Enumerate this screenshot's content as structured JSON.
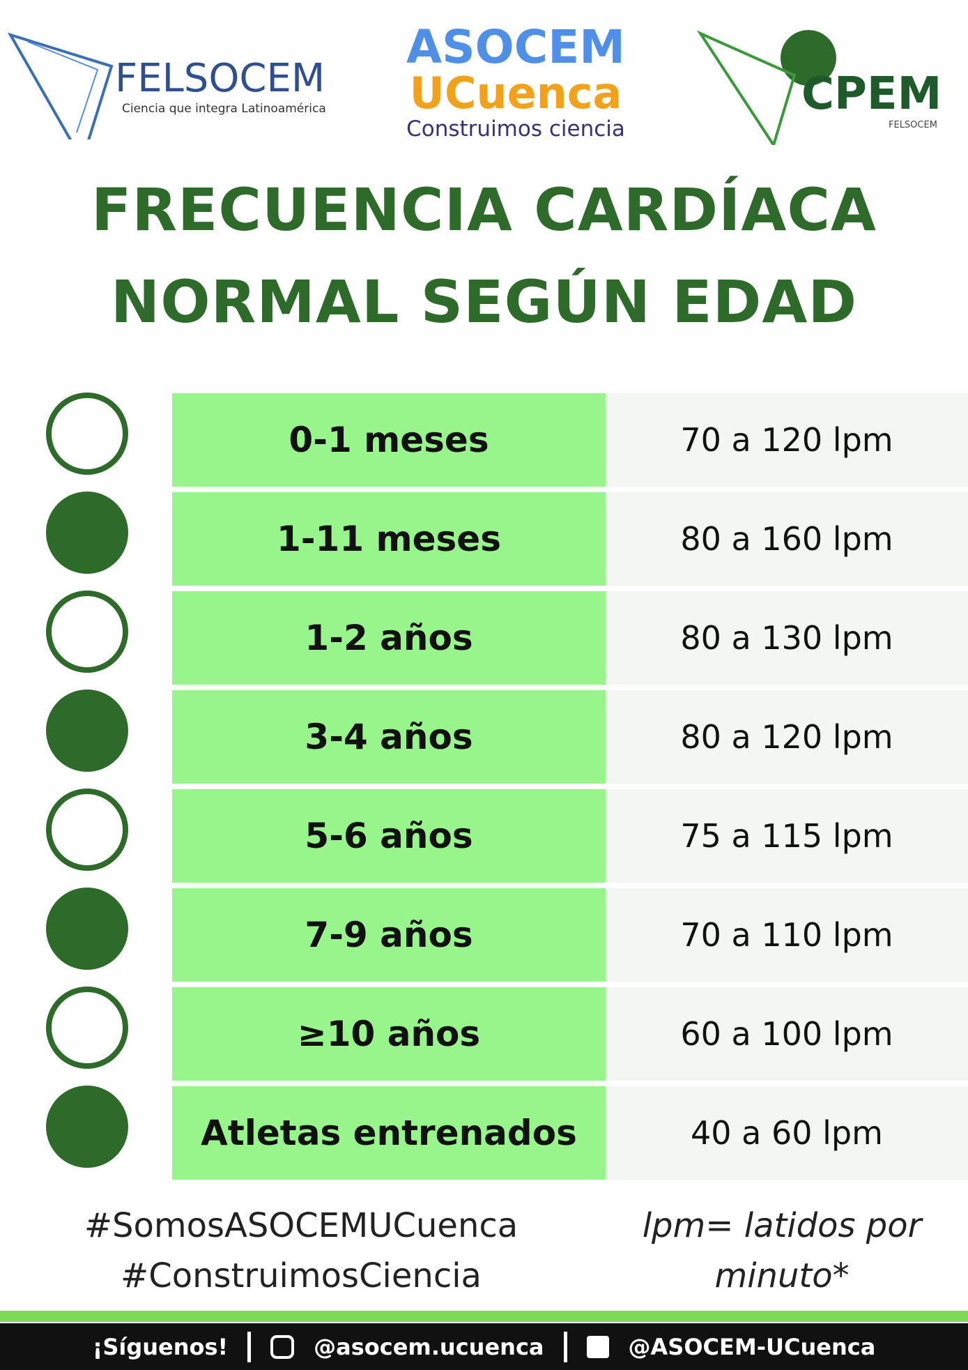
{
  "logos": {
    "felsocem": {
      "name": "FELSOCEM",
      "tagline": "Ciencia que integra Latinoamérica"
    },
    "asocem": {
      "name": "ASOCEM",
      "city": "UCuenca",
      "tagline": "Construimos ciencia"
    },
    "cpem": {
      "name": "CPEM",
      "sub": "FELSOCEM"
    }
  },
  "title": [
    "FRECUENCIA CARDÍACA",
    "NORMAL SEGÚN EDAD"
  ],
  "table": {
    "rows": [
      [
        "0-1 meses",
        "70 a 120 lpm"
      ],
      [
        "1-11 meses",
        "80 a 160 lpm"
      ],
      [
        "1-2 años",
        "80 a 130 lpm"
      ],
      [
        "3-4 años",
        "80 a 120 lpm"
      ],
      [
        "5-6 años",
        "75 a 115 lpm"
      ],
      [
        "7-9 años",
        "70 a 110 lpm"
      ],
      [
        "≥10 años",
        "60 a 100 lpm"
      ],
      [
        "Atletas entrenados",
        "40 a 60 lpm"
      ]
    ]
  },
  "hashtags": [
    "#SomosASOCEMUCuenca",
    "#ConstruimosCiencia"
  ],
  "note": [
    "lpm= latidos por",
    "minuto*"
  ],
  "footer": {
    "follow": "¡Síguenos!",
    "instagram": "@asocem.ucuenca",
    "facebook": "@ASOCEM-UCuenca"
  }
}
